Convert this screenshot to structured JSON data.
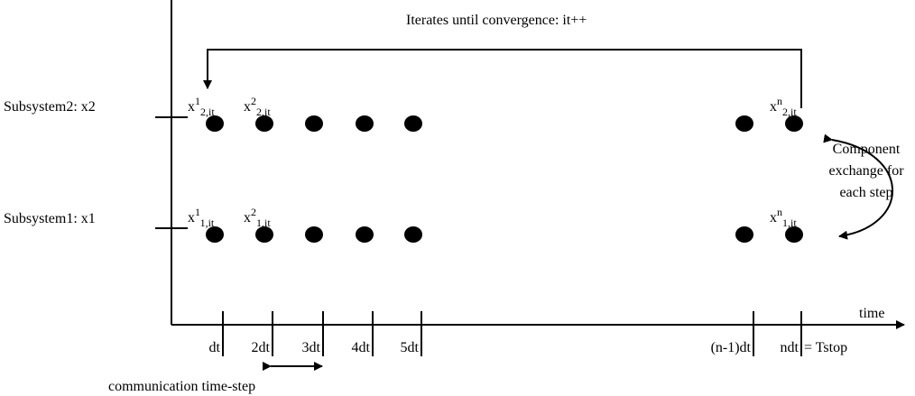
{
  "loop_label": "Iterates until convergence:   it++",
  "subsystems": [
    {
      "label": "Subsystem2: x2",
      "points": [
        {
          "base": "x",
          "sup": "1",
          "sub": "2,it"
        },
        {
          "base": "x",
          "sup": "2",
          "sub": "2,it"
        },
        {
          "base": "x",
          "sup": "n",
          "sub": "2,it"
        }
      ]
    },
    {
      "label": "Subsystem1: x1",
      "points": [
        {
          "base": "x",
          "sup": "1",
          "sub": "1,it"
        },
        {
          "base": "x",
          "sup": "2",
          "sub": "1,it"
        },
        {
          "base": "x",
          "sup": "n",
          "sub": "1,it"
        }
      ]
    }
  ],
  "exchange_label": [
    "Component",
    "exchange for",
    "each step"
  ],
  "time_label": "time",
  "ticks": [
    "dt",
    "2dt",
    "3dt",
    "4dt",
    "5dt",
    "(n-1)dt",
    "ndt"
  ],
  "stop_label": "= Tstop",
  "step_label": "communication  time-step"
}
